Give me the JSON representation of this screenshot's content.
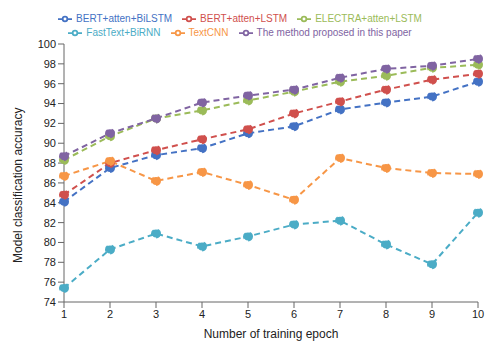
{
  "chart_data": {
    "type": "line",
    "x_label": "Number of training epoch",
    "y_label": "Model classification accuracy",
    "categories": [
      "1",
      "2",
      "3",
      "4",
      "5",
      "6",
      "7",
      "8",
      "9",
      "10"
    ],
    "ylim": [
      74,
      100
    ],
    "yticks": [
      74,
      76,
      78,
      80,
      82,
      84,
      86,
      88,
      90,
      92,
      94,
      96,
      98,
      100
    ],
    "grid": false,
    "legend": "top",
    "series": [
      {
        "name": "BERT+atten+BiLSTM",
        "color": "#4472c4",
        "marker": "circle",
        "line_style": "dashed",
        "values": [
          84.1,
          87.5,
          88.8,
          89.5,
          91.0,
          91.7,
          93.4,
          94.1,
          94.7,
          96.2
        ]
      },
      {
        "name": "BERT+atten+LSTM",
        "color": "#d0504d",
        "marker": "circle",
        "line_style": "dashed",
        "values": [
          84.8,
          88.0,
          89.3,
          90.4,
          91.4,
          93.0,
          94.2,
          95.4,
          96.4,
          97.0
        ]
      },
      {
        "name": "ELECTRA+atten+LSTM",
        "color": "#9bbb59",
        "marker": "circle",
        "line_style": "dashed",
        "values": [
          88.3,
          90.7,
          92.5,
          93.3,
          94.3,
          95.2,
          96.2,
          96.8,
          97.6,
          97.9
        ]
      },
      {
        "name": "The method proposed in this paper",
        "color": "#8064a2",
        "marker": "circle",
        "line_style": "dashed",
        "values": [
          88.7,
          91.0,
          92.5,
          94.1,
          94.8,
          95.4,
          96.6,
          97.5,
          97.8,
          98.5
        ]
      },
      {
        "name": "FastText+BiRNN",
        "color": "#4bacc6",
        "marker": "circle",
        "line_style": "dashed",
        "values": [
          75.4,
          79.3,
          80.9,
          79.6,
          80.6,
          81.8,
          82.2,
          79.8,
          77.8,
          83.0
        ]
      },
      {
        "name": "TextCNN",
        "color": "#f79646",
        "marker": "circle",
        "line_style": "dashed",
        "values": [
          86.7,
          88.2,
          86.2,
          87.1,
          85.8,
          84.3,
          88.5,
          87.5,
          87.0,
          86.9
        ]
      }
    ]
  }
}
